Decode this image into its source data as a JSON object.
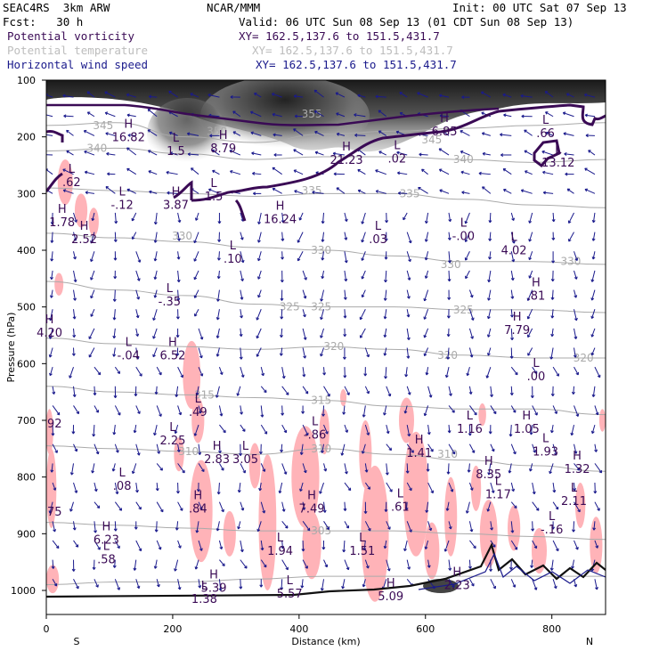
{
  "header": {
    "model": "SEAC4RS  3km ARW",
    "org": "NCAR/MMM",
    "init": "Init: 00 UTC Sat 07 Sep 13",
    "fcst": "Fcst:   30 h",
    "valid": "Valid: 06 UTC Sun 08 Sep 13 (01 CDT Sun 08 Sep 13)",
    "field1": "Potential vorticity",
    "field1_xy": "XY= 162.5,137.6 to 151.5,431.7",
    "field2": "Potential temperature",
    "field2_xy": "XY= 162.5,137.6 to 151.5,431.7",
    "field3": "Horizontal wind speed",
    "field3_xy": "XY= 162.5,137.6 to 151.5,431.7"
  },
  "chart_data": {
    "type": "cross-section",
    "xlabel": "Distance (km)",
    "ylabel": "Pressure (hPa)",
    "x_ticks": [
      0,
      200,
      400,
      600,
      800
    ],
    "y_ticks": [
      100,
      200,
      300,
      400,
      500,
      600,
      700,
      800,
      900,
      1000
    ],
    "xlim": [
      0,
      885
    ],
    "ylim": [
      1000,
      100
    ],
    "end_left": "S",
    "end_right": "N",
    "colors": {
      "wind": "#1a1a8c",
      "pv": "#3a0a55",
      "theta": "#aaaaaa",
      "shade": "#ffb3b8"
    },
    "theta_labels": [
      {
        "text": "345",
        "x": 90,
        "p": 180
      },
      {
        "text": "355",
        "x": 420,
        "p": 160
      },
      {
        "text": "350",
        "x": 270,
        "p": 190
      },
      {
        "text": "340",
        "x": 80,
        "p": 220
      },
      {
        "text": "345",
        "x": 610,
        "p": 205
      },
      {
        "text": "340",
        "x": 660,
        "p": 240
      },
      {
        "text": "335",
        "x": 420,
        "p": 295
      },
      {
        "text": "335",
        "x": 575,
        "p": 300
      },
      {
        "text": "330",
        "x": 215,
        "p": 375
      },
      {
        "text": "330",
        "x": 435,
        "p": 400
      },
      {
        "text": "330",
        "x": 640,
        "p": 425
      },
      {
        "text": "330",
        "x": 830,
        "p": 420
      },
      {
        "text": "325",
        "x": 385,
        "p": 500
      },
      {
        "text": "325",
        "x": 435,
        "p": 500
      },
      {
        "text": "325",
        "x": 660,
        "p": 505
      },
      {
        "text": "320",
        "x": 455,
        "p": 570
      },
      {
        "text": "320",
        "x": 635,
        "p": 585
      },
      {
        "text": "320",
        "x": 850,
        "p": 590
      },
      {
        "text": "315",
        "x": 250,
        "p": 655
      },
      {
        "text": "315",
        "x": 435,
        "p": 665
      },
      {
        "text": "310",
        "x": 225,
        "p": 755
      },
      {
        "text": "310",
        "x": 435,
        "p": 750
      },
      {
        "text": "310",
        "x": 635,
        "p": 760
      },
      {
        "text": "305",
        "x": 435,
        "p": 895
      }
    ],
    "extrema": [
      {
        "t": "H",
        "v": "16.82",
        "x": 130,
        "p": 190
      },
      {
        "t": "L",
        "v": "1.5",
        "x": 205,
        "p": 215
      },
      {
        "t": "H",
        "v": "8.79",
        "x": 280,
        "p": 210
      },
      {
        "t": "H",
        "v": "21.23",
        "x": 475,
        "p": 230
      },
      {
        "t": "L",
        "v": ".02",
        "x": 555,
        "p": 228
      },
      {
        "t": "H",
        "v": "6.85",
        "x": 630,
        "p": 180
      },
      {
        "t": "L",
        "v": ".66",
        "x": 790,
        "p": 183
      },
      {
        "t": "L",
        "v": "13.12",
        "x": 810,
        "p": 235
      },
      {
        "t": "L",
        "v": ".62",
        "x": 40,
        "p": 270
      },
      {
        "t": "L",
        "v": "-.12",
        "x": 120,
        "p": 310
      },
      {
        "t": "H",
        "v": "3.87",
        "x": 205,
        "p": 310
      },
      {
        "t": "L",
        "v": "1.5",
        "x": 265,
        "p": 295
      },
      {
        "t": "H",
        "v": "16.24",
        "x": 370,
        "p": 335
      },
      {
        "t": "H",
        "v": "1.78",
        "x": 25,
        "p": 340
      },
      {
        "t": "H",
        "v": "2.52",
        "x": 60,
        "p": 370
      },
      {
        "t": "L",
        "v": ".03",
        "x": 525,
        "p": 370
      },
      {
        "t": "L",
        "v": "-.00",
        "x": 660,
        "p": 365
      },
      {
        "t": "L",
        "v": "4.02",
        "x": 740,
        "p": 390
      },
      {
        "t": "L",
        "v": ".10",
        "x": 295,
        "p": 405
      },
      {
        "t": "L",
        "v": "-.35",
        "x": 195,
        "p": 480
      },
      {
        "t": "H",
        "v": ".81",
        "x": 775,
        "p": 470
      },
      {
        "t": "H",
        "v": "7.79",
        "x": 745,
        "p": 530
      },
      {
        "t": "H",
        "v": "4.20",
        "x": 5,
        "p": 535
      },
      {
        "t": "L",
        "v": "-.04",
        "x": 130,
        "p": 575
      },
      {
        "t": "H",
        "v": "6.52",
        "x": 200,
        "p": 575
      },
      {
        "t": "L",
        "v": ".00",
        "x": 775,
        "p": 612
      },
      {
        "t": "L",
        "v": ".49",
        "x": 240,
        "p": 675
      },
      {
        "t": "L",
        "v": "1.16",
        "x": 670,
        "p": 705
      },
      {
        "t": "H",
        "v": "1.05",
        "x": 760,
        "p": 705
      },
      {
        "t": "L",
        "v": "-.86",
        "x": 425,
        "p": 715
      },
      {
        "t": "L",
        "v": "2.25",
        "x": 200,
        "p": 725
      },
      {
        "t": "L",
        "v": "1.93",
        "x": 790,
        "p": 745
      },
      {
        "t": "H",
        "v": "1.41",
        "x": 590,
        "p": 747
      },
      {
        "t": "H",
        "v": "2.83",
        "x": 270,
        "p": 758
      },
      {
        "t": "L",
        "v": "3.05",
        "x": 315,
        "p": 758
      },
      {
        "t": "H",
        "v": "1.32",
        "x": 840,
        "p": 775
      },
      {
        "t": "H",
        "v": "8.35",
        "x": 700,
        "p": 785
      },
      {
        "t": "L",
        "v": ".08",
        "x": 120,
        "p": 805
      },
      {
        "t": "L",
        "v": "1.17",
        "x": 715,
        "p": 820
      },
      {
        "t": "L",
        "v": "2.11",
        "x": 835,
        "p": 832
      },
      {
        "t": "H",
        "v": ".84",
        "x": 240,
        "p": 845
      },
      {
        "t": "H",
        "v": "7.49",
        "x": 420,
        "p": 845
      },
      {
        "t": "L",
        "v": ".61",
        "x": 560,
        "p": 842
      },
      {
        "t": "L",
        "v": "-.16",
        "x": 800,
        "p": 882
      },
      {
        "t": "H",
        "v": "6.23",
        "x": 95,
        "p": 900
      },
      {
        "t": "L",
        "v": ".58",
        "x": 95,
        "p": 935
      },
      {
        "t": "L",
        "v": "1.94",
        "x": 370,
        "p": 920
      },
      {
        "t": "L",
        "v": "1.51",
        "x": 500,
        "p": 920
      },
      {
        "t": "H",
        "v": "5.39",
        "x": 265,
        "p": 985
      },
      {
        "t": "L",
        "v": "1.38",
        "x": 250,
        "p": 1005
      },
      {
        "t": "L",
        "v": "5.57",
        "x": 385,
        "p": 995
      },
      {
        "t": "H",
        "v": "2.23",
        "x": 650,
        "p": 980
      },
      {
        "t": "H",
        "v": "5.09",
        "x": 545,
        "p": 1000
      }
    ],
    "edge_labels": [
      {
        "text": "92",
        "x": 0,
        "p": 705
      },
      {
        "text": "75",
        "x": 0,
        "p": 860
      }
    ]
  }
}
